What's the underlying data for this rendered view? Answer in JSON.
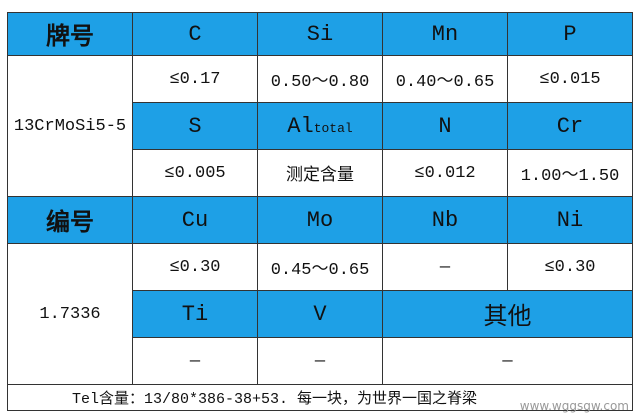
{
  "table": {
    "rows": [
      [
        "牌号",
        "C",
        "Si",
        "Mn",
        "P"
      ],
      [
        "13CrMoSi5-5",
        "≤0.17",
        "0.50～0.80",
        "0.40～0.65",
        "≤0.015"
      ],
      [
        "S",
        {
          "symbol": "Al",
          "subscript": "total"
        },
        "N",
        "Cr"
      ],
      [
        "≤0.005",
        "测定含量",
        "≤0.012",
        "1.00～1.50"
      ],
      [
        "编号",
        "Cu",
        "Mo",
        "Nb",
        "Ni"
      ],
      [
        "1.7336",
        "≤0.30",
        "0.45～0.65",
        "—",
        "≤0.30"
      ],
      [
        "Ti",
        "V",
        "其他"
      ],
      [
        "—",
        "—",
        "—"
      ]
    ],
    "footer": "Tel含量：13/80*386-38+53. 每一块，为世界一国之脊梁"
  },
  "watermark": "www.wggsgw.com"
}
